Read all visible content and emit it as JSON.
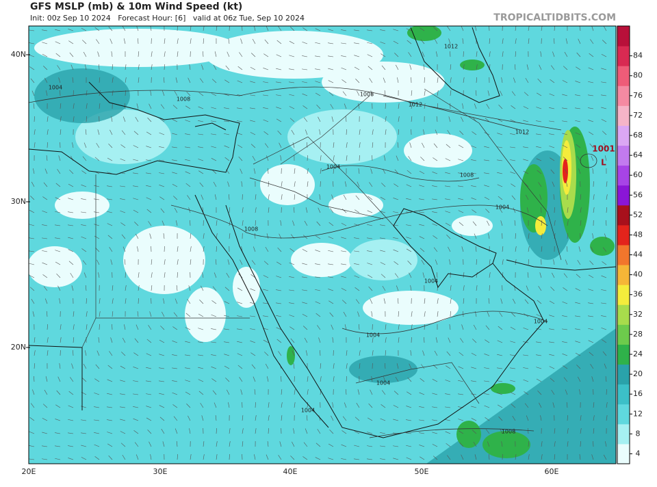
{
  "header": {
    "title": "GFS MSLP (mb) & 10m Wind Speed (kt)",
    "subtitle": "Init: 00z Sep 10 2024   Forecast Hour: [6]   valid at 06z Tue, Sep 10 2024",
    "site": "TROPICALTIDBITS.COM"
  },
  "axes": {
    "lat_labels": [
      "40N",
      "30N",
      "20N"
    ],
    "lon_labels": [
      "20E",
      "30E",
      "40E",
      "50E",
      "60E"
    ]
  },
  "colorbar": {
    "ticks": [
      4,
      8,
      12,
      16,
      20,
      24,
      28,
      32,
      36,
      40,
      44,
      48,
      52,
      56,
      60,
      64,
      68,
      72,
      76,
      80,
      84
    ],
    "colors": [
      "#eafdfd",
      "#a6f0f2",
      "#5fd8de",
      "#3cc0c8",
      "#2aa2aa",
      "#2fb24a",
      "#6dcb4c",
      "#a8dc4c",
      "#f4ec3c",
      "#f5b637",
      "#f2762c",
      "#e3241c",
      "#a8101c",
      "#8a16d6",
      "#a744e6",
      "#c27aef",
      "#dba7f4",
      "#f5b4c8",
      "#f48aa2",
      "#ee5c78",
      "#d82a52",
      "#b8103a"
    ]
  },
  "map_labels": [
    "1008",
    "1004",
    "1012",
    "1008",
    "1008",
    "1004",
    "1008",
    "1004",
    "1004",
    "1004",
    "1012",
    "1012",
    "1004",
    "1008",
    "1001",
    "L",
    "1004",
    "1004"
  ]
}
